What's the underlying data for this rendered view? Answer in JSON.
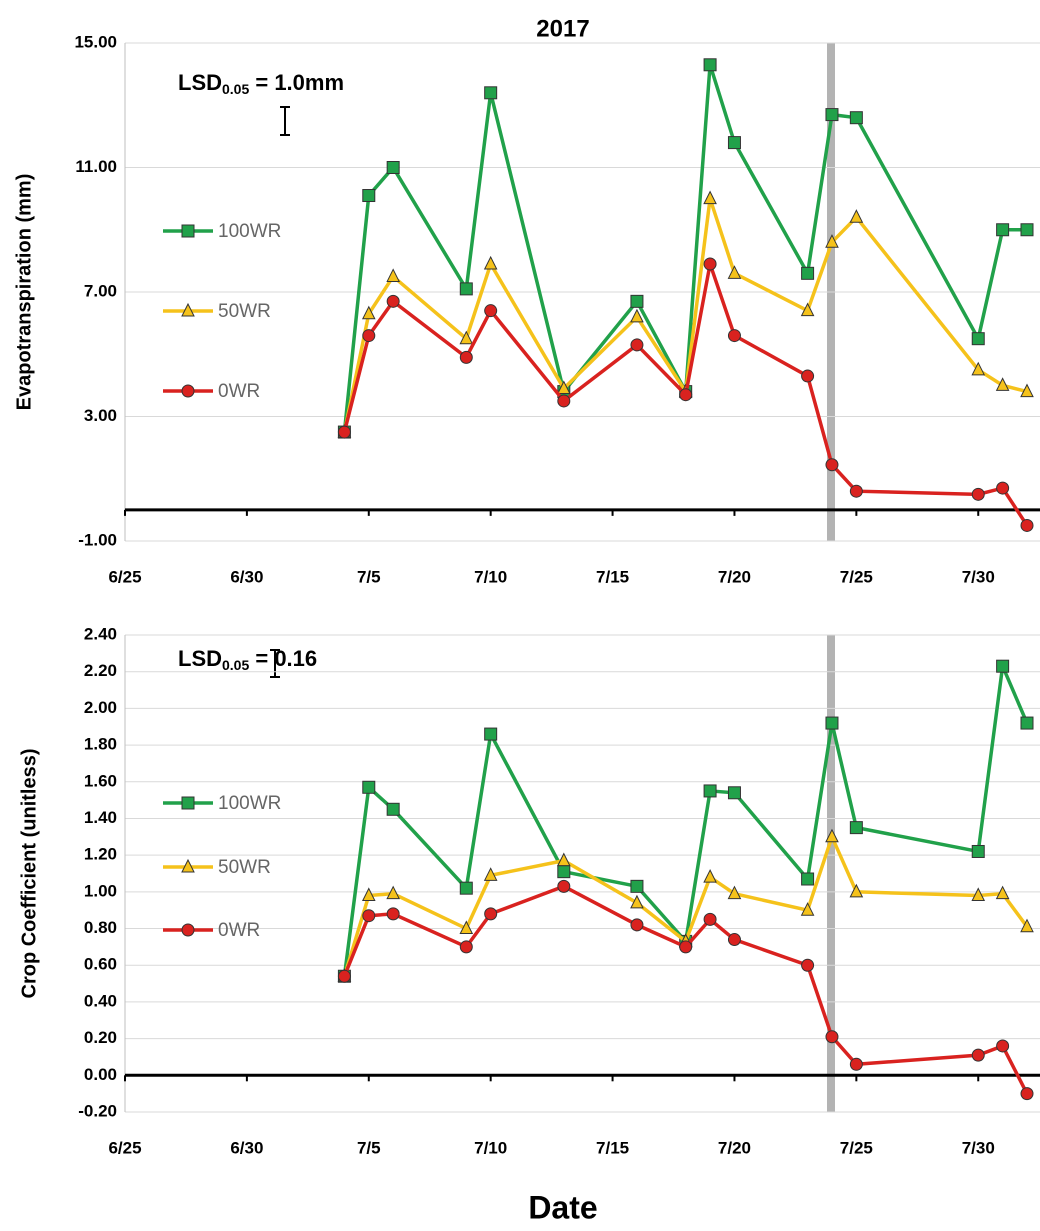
{
  "chart_data": [
    {
      "type": "line",
      "title": "2017",
      "ylabel": "Evapotranspiration (mm)",
      "annotation": {
        "text": "LSD",
        "subscript": "0.05",
        "suffix": " = 1.0mm"
      },
      "x": [
        "7/4",
        "7/5",
        "7/6",
        "7/9",
        "7/10",
        "7/13",
        "7/16",
        "7/18",
        "7/19",
        "7/20",
        "7/23",
        "7/24",
        "7/25",
        "7/30",
        "7/31",
        "8/1"
      ],
      "xlim": [
        "6/25",
        "8/1"
      ],
      "xticks": [
        "6/25",
        "6/30",
        "7/5",
        "7/10",
        "7/15",
        "7/20",
        "7/25",
        "7/30"
      ],
      "ylim": [
        -1,
        15
      ],
      "yticks": [
        {
          "value": -1,
          "label": "-1.00"
        },
        {
          "value": 3,
          "label": "3.00"
        },
        {
          "value": 7,
          "label": "7.00"
        },
        {
          "value": 11,
          "label": "11.00"
        },
        {
          "value": 15,
          "label": "15.00"
        }
      ],
      "grid": true,
      "series": [
        {
          "name": "100WR",
          "color": "#21a14a",
          "marker": "square",
          "values": [
            2.5,
            10.1,
            11.0,
            7.1,
            13.4,
            3.8,
            6.7,
            3.8,
            14.3,
            11.8,
            7.6,
            12.7,
            12.6,
            5.5,
            9.0,
            9.0
          ]
        },
        {
          "name": "50WR",
          "color": "#f5c21b",
          "marker": "triangle",
          "values": [
            2.5,
            6.3,
            7.5,
            5.5,
            7.9,
            3.9,
            6.2,
            3.8,
            10.0,
            7.6,
            6.4,
            8.6,
            9.4,
            4.5,
            4.0,
            3.8
          ]
        },
        {
          "name": "0WR",
          "color": "#d9221f",
          "marker": "circle",
          "values": [
            2.5,
            5.6,
            6.7,
            4.9,
            6.4,
            3.5,
            5.3,
            3.7,
            7.9,
            5.6,
            4.3,
            1.45,
            0.6,
            0.5,
            0.7,
            -0.5
          ]
        }
      ]
    },
    {
      "type": "line",
      "ylabel": "Crop Coefficient (unitless)",
      "xlabel": "Date",
      "annotation": {
        "text": "LSD",
        "subscript": "0.05",
        "suffix": " = 0.16"
      },
      "x": [
        "7/4",
        "7/5",
        "7/6",
        "7/9",
        "7/10",
        "7/13",
        "7/16",
        "7/18",
        "7/19",
        "7/20",
        "7/23",
        "7/24",
        "7/25",
        "7/30",
        "7/31",
        "8/1"
      ],
      "xlim": [
        "6/25",
        "8/1"
      ],
      "xticks": [
        "6/25",
        "6/30",
        "7/5",
        "7/10",
        "7/15",
        "7/20",
        "7/25",
        "7/30"
      ],
      "ylim": [
        -0.2,
        2.4
      ],
      "yticks": [
        {
          "value": -0.2,
          "label": "-0.20"
        },
        {
          "value": 0,
          "label": "0.00"
        },
        {
          "value": 0.2,
          "label": "0.20"
        },
        {
          "value": 0.4,
          "label": "0.40"
        },
        {
          "value": 0.6,
          "label": "0.60"
        },
        {
          "value": 0.8,
          "label": "0.80"
        },
        {
          "value": 1.0,
          "label": "1.00"
        },
        {
          "value": 1.2,
          "label": "1.20"
        },
        {
          "value": 1.4,
          "label": "1.40"
        },
        {
          "value": 1.6,
          "label": "1.60"
        },
        {
          "value": 1.8,
          "label": "1.80"
        },
        {
          "value": 2.0,
          "label": "2.00"
        },
        {
          "value": 2.2,
          "label": "2.20"
        },
        {
          "value": 2.4,
          "label": "2.40"
        }
      ],
      "grid": true,
      "series": [
        {
          "name": "100WR",
          "color": "#21a14a",
          "marker": "square",
          "values": [
            0.54,
            1.57,
            1.45,
            1.02,
            1.86,
            1.11,
            1.03,
            0.73,
            1.55,
            1.54,
            1.07,
            1.92,
            1.35,
            1.22,
            2.23,
            1.92
          ]
        },
        {
          "name": "50WR",
          "color": "#f5c21b",
          "marker": "triangle",
          "values": [
            0.54,
            0.98,
            0.99,
            0.8,
            1.09,
            1.17,
            0.94,
            0.73,
            1.08,
            0.99,
            0.9,
            1.3,
            1.0,
            0.98,
            0.99,
            0.81
          ]
        },
        {
          "name": "0WR",
          "color": "#d9221f",
          "marker": "circle",
          "values": [
            0.54,
            0.87,
            0.88,
            0.7,
            0.88,
            1.03,
            0.82,
            0.7,
            0.85,
            0.74,
            0.6,
            0.21,
            0.06,
            0.11,
            0.16,
            -0.1
          ]
        }
      ]
    }
  ]
}
